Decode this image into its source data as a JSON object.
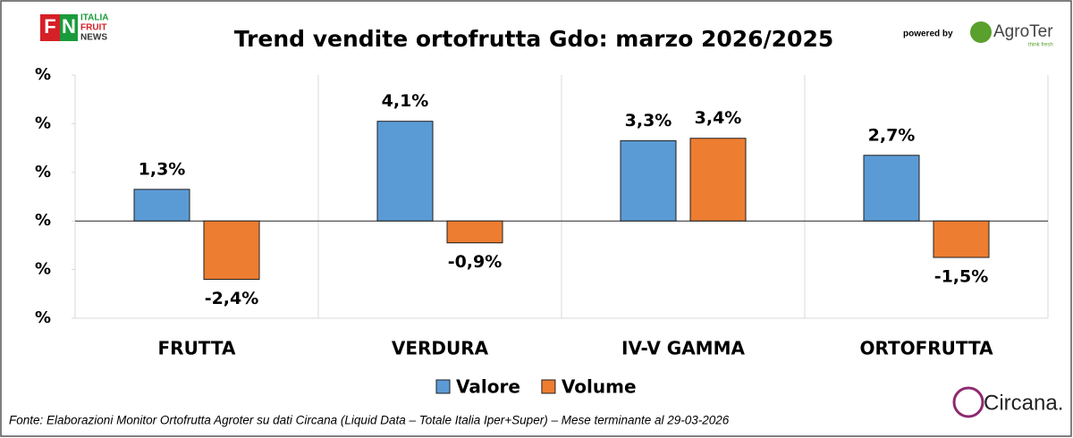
{
  "chart_data": {
    "type": "bar",
    "title": "Trend vendite ortofrutta Gdo: marzo 2026/2025",
    "categories": [
      "FRUTTA",
      "VERDURA",
      "IV-V GAMMA",
      "ORTOFRUTTA"
    ],
    "series": [
      {
        "name": "Valore",
        "color": "#5b9bd5",
        "values": [
          1.3,
          4.1,
          3.3,
          2.7
        ],
        "value_labels": [
          "1,3%",
          "4,1%",
          "3,3%",
          "2,7%"
        ]
      },
      {
        "name": "Volume",
        "color": "#ed7d31",
        "values": [
          -2.4,
          -0.9,
          3.4,
          -1.5
        ],
        "value_labels": [
          "-2,4%",
          "-0,9%",
          "3,4%",
          "-1,5%"
        ]
      }
    ],
    "ylim": [
      -4,
      6
    ],
    "yticks": [
      {
        "value": -4,
        "label": "%"
      },
      {
        "value": -2,
        "label": "%"
      },
      {
        "value": 0,
        "label": "%"
      },
      {
        "value": 2,
        "label": "%"
      },
      {
        "value": 4,
        "label": "%"
      },
      {
        "value": 6,
        "label": "%"
      }
    ],
    "grid": false,
    "legend": "bottom",
    "source": "Fonte: Elaborazioni Monitor Ortofrutta Agroter su dati Circana (Liquid Data – Totale Italia Iper+Super) – Mese terminante al 29-03-2026"
  },
  "branding": {
    "fn_lines": [
      "ITALIA",
      "FRUIT",
      "NEWS"
    ],
    "powered_by": "powered by",
    "agroter": "AgroTer",
    "agroter_tagline": "think fresh",
    "circana": "Circana."
  }
}
